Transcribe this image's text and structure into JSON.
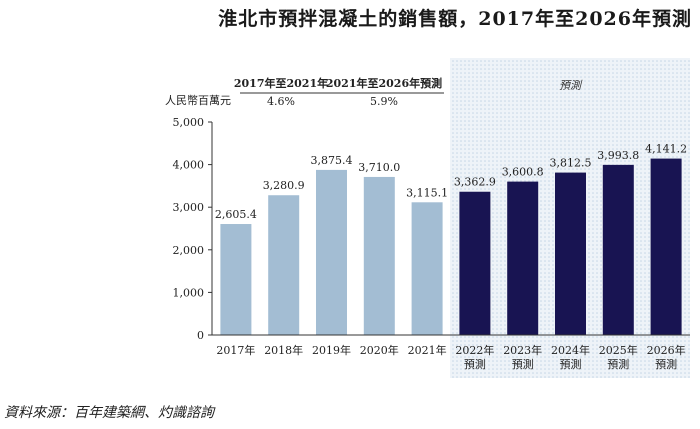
{
  "title": "淮北市預拌混凝土的銷售額，2017年至2026年預測",
  "source": "資料來源：百年建築網、灼識諮詢",
  "chart_data": {
    "type": "bar",
    "ylabel": "人民幣百萬元",
    "ylim": [
      0,
      5000
    ],
    "yticks": [
      "0",
      "1,000",
      "2,000",
      "3,000",
      "4,000",
      "5,000"
    ],
    "categories": [
      {
        "line1": "2017年",
        "line2": ""
      },
      {
        "line1": "2018年",
        "line2": ""
      },
      {
        "line1": "2019年",
        "line2": ""
      },
      {
        "line1": "2020年",
        "line2": ""
      },
      {
        "line1": "2021年",
        "line2": ""
      },
      {
        "line1": "2022年",
        "line2": "預測"
      },
      {
        "line1": "2023年",
        "line2": "預測"
      },
      {
        "line1": "2024年",
        "line2": "預測"
      },
      {
        "line1": "2025年",
        "line2": "預測"
      },
      {
        "line1": "2026年",
        "line2": "預測"
      }
    ],
    "values": [
      2605.4,
      3280.9,
      3875.4,
      3710.0,
      3115.1,
      3362.9,
      3600.8,
      3812.5,
      3993.8,
      4141.2
    ],
    "value_labels": [
      "2,605.4",
      "3,280.9",
      "3,875.4",
      "3,710.0",
      "3,115.1",
      "3,362.9",
      "3,600.8",
      "3,812.5",
      "3,993.8",
      "4,141.2"
    ],
    "forecast_start_index": 5,
    "forecast_label": "預測",
    "cagr": [
      {
        "period": "2017年至2021年",
        "value": "4.6%"
      },
      {
        "period": "2021年至2026年預測",
        "value": "5.9%"
      }
    ],
    "colors": {
      "historical": "#a3bdd3",
      "forecast": "#181452",
      "shade": "#e3ecf4"
    }
  }
}
